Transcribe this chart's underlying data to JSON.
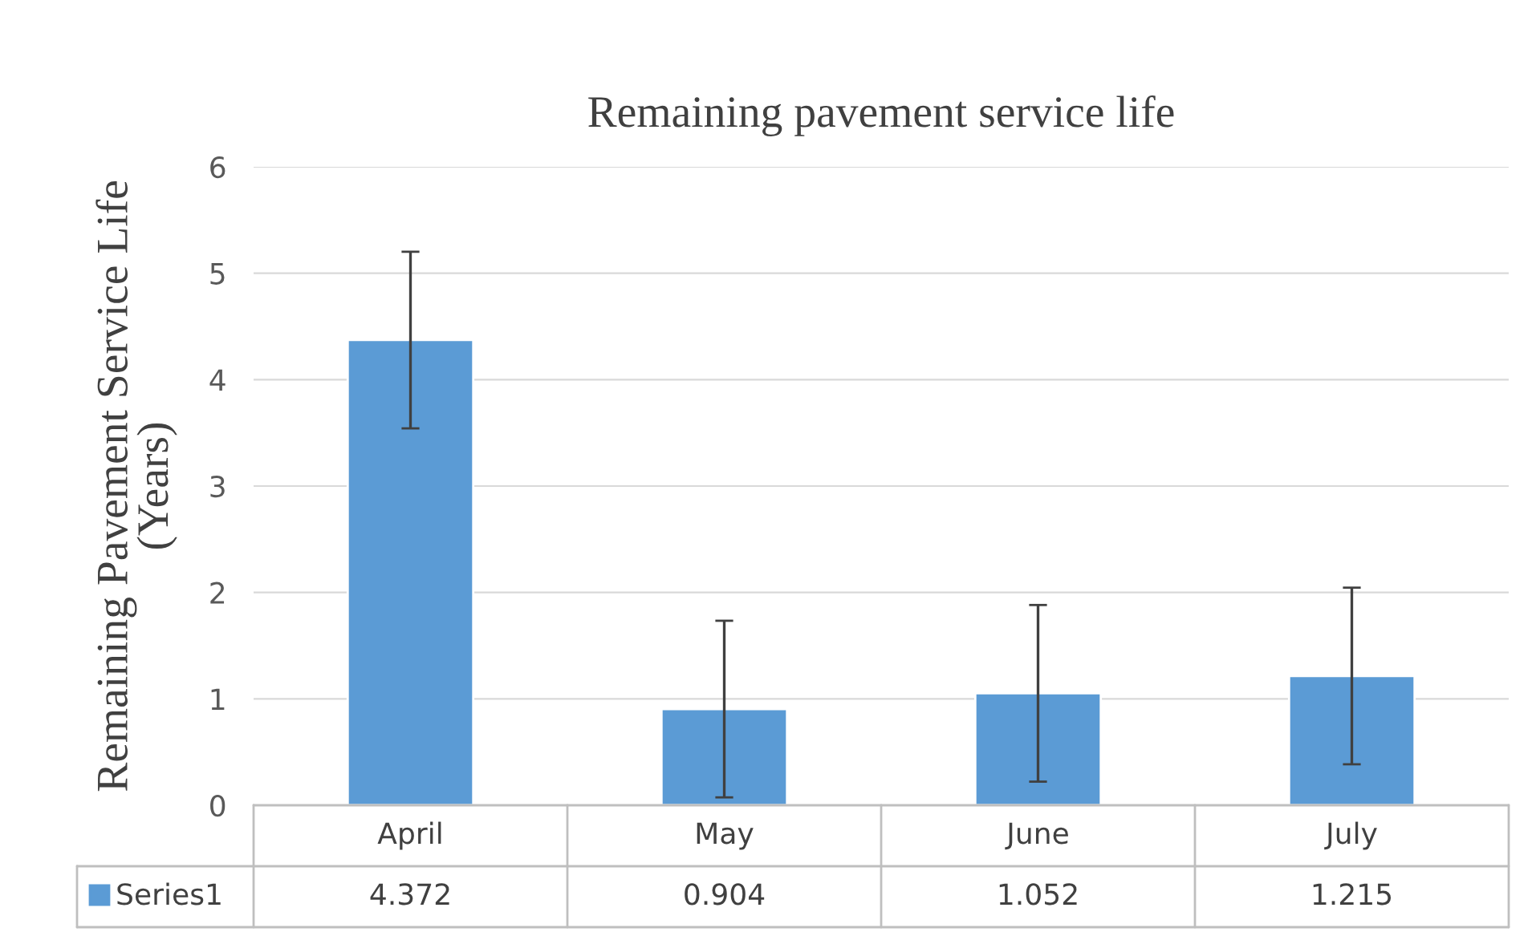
{
  "chart_data": {
    "type": "bar",
    "title": "Remaining pavement service life",
    "ylabel": "Remaining Pavement Service Life\n(Years)",
    "categories": [
      "April",
      "May",
      "June",
      "July"
    ],
    "series": [
      {
        "name": "Series1",
        "color": "#5b9bd5",
        "values": [
          4.372,
          0.904,
          1.052,
          1.215
        ],
        "errors": [
          0.83,
          0.83,
          0.83,
          0.83
        ]
      }
    ],
    "ylim": [
      0,
      6
    ],
    "yticks": [
      0,
      1,
      2,
      3,
      4,
      5,
      6
    ],
    "grid": "y",
    "data_labels": true
  }
}
